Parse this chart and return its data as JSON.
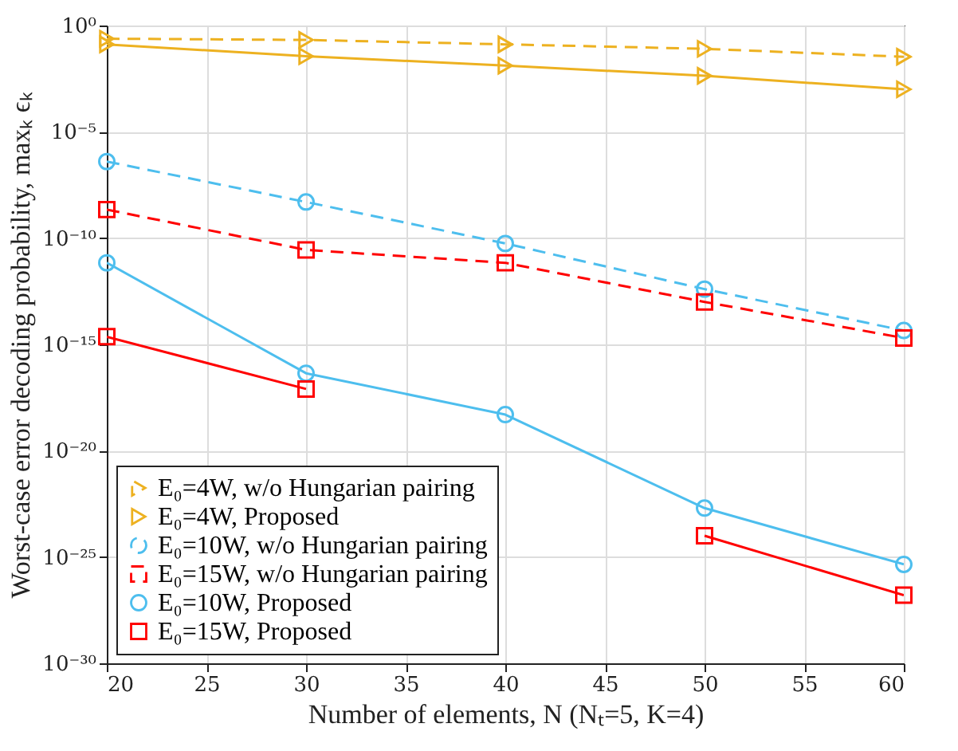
{
  "chart_data": {
    "type": "line",
    "xlabel": "Number of elements, N (Nₜ=5, K=4)",
    "ylabel": "Worst-case error decoding probability, maxₖ ϵₖ",
    "x": [
      20,
      30,
      40,
      50,
      60
    ],
    "series": [
      {
        "name": "E₀=4W, w/o Hungarian pairing",
        "color": "#edb120",
        "marker": "triangle",
        "line_style": "dashed",
        "values": [
          0.24,
          0.21,
          0.13,
          0.08,
          0.034
        ]
      },
      {
        "name": "E₀=4W, Proposed",
        "color": "#edb120",
        "marker": "triangle",
        "line_style": "solid",
        "values": [
          0.13,
          0.036,
          0.013,
          0.0043,
          0.001
        ]
      },
      {
        "name": "E₀=10W, w/o Hungarian pairing",
        "color": "#4dbeee",
        "marker": "circle",
        "line_style": "dashed",
        "values": [
          4e-07,
          5e-09,
          5.6e-11,
          4e-13,
          4.5e-15
        ]
      },
      {
        "name": "E₀=15W, w/o Hungarian pairing",
        "color": "#ff0000",
        "marker": "square",
        "line_style": "dashed",
        "values": [
          2.2e-09,
          2.8e-11,
          6.9e-12,
          1e-13,
          2e-15
        ]
      },
      {
        "name": "E₀=10W, Proposed",
        "color": "#4dbeee",
        "marker": "circle",
        "line_style": "solid",
        "values": [
          6.9e-12,
          4.4e-17,
          5e-19,
          2e-23,
          4.5e-26
        ]
      },
      {
        "name": "E₀=15W, Proposed",
        "color": "#ff0000",
        "marker": "square",
        "line_style": "solid",
        "values": [
          2.3e-15,
          8e-18,
          null,
          1e-24,
          1.6e-27
        ]
      }
    ],
    "xlim": [
      20,
      60
    ],
    "xticks": [
      20,
      25,
      30,
      35,
      40,
      45,
      50,
      55,
      60
    ],
    "ylim": [
      1e-30,
      1
    ],
    "yticks": [
      {
        "value": 1e-30,
        "label": "10⁻³⁰"
      },
      {
        "value": 1e-25,
        "label": "10⁻²⁵"
      },
      {
        "value": 1e-20,
        "label": "10⁻²⁰"
      },
      {
        "value": 1e-15,
        "label": "10⁻¹⁵"
      },
      {
        "value": 1e-10,
        "label": "10⁻¹⁰"
      },
      {
        "value": 1e-05,
        "label": "10⁻⁵"
      },
      {
        "value": 1,
        "label": "10⁰"
      }
    ],
    "log": "y",
    "grid": true,
    "legend": "bottom left"
  }
}
